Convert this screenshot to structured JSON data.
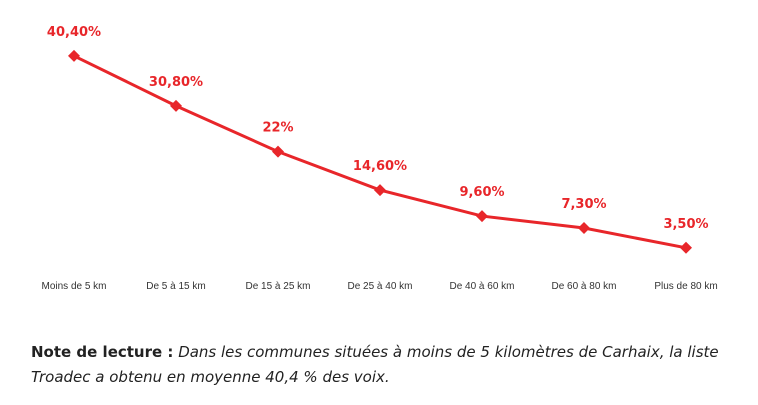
{
  "chart_data": {
    "type": "line",
    "categories": [
      "Moins de 5 km",
      "De 5 à 15 km",
      "De 15 à 25 km",
      "De 25 à 40 km",
      "De 40 à 60 km",
      "De 60 à 80 km",
      "Plus de 80 km"
    ],
    "values": [
      40.4,
      30.8,
      22,
      14.6,
      9.6,
      7.3,
      3.5
    ],
    "data_labels": [
      "40,40%",
      "30,80%",
      "22%",
      "14,60%",
      "9,60%",
      "7,30%",
      "3,50%"
    ],
    "title": "",
    "xlabel": "",
    "ylabel": "",
    "ylim": [
      0,
      45
    ],
    "grid": false,
    "color": "#e8262a"
  },
  "note": {
    "label": "Note de lecture :",
    "text": "Dans les communes situées à moins de 5 kilomètres de Carhaix, la liste Troadec a obtenu en moyenne 40,4 % des voix."
  }
}
